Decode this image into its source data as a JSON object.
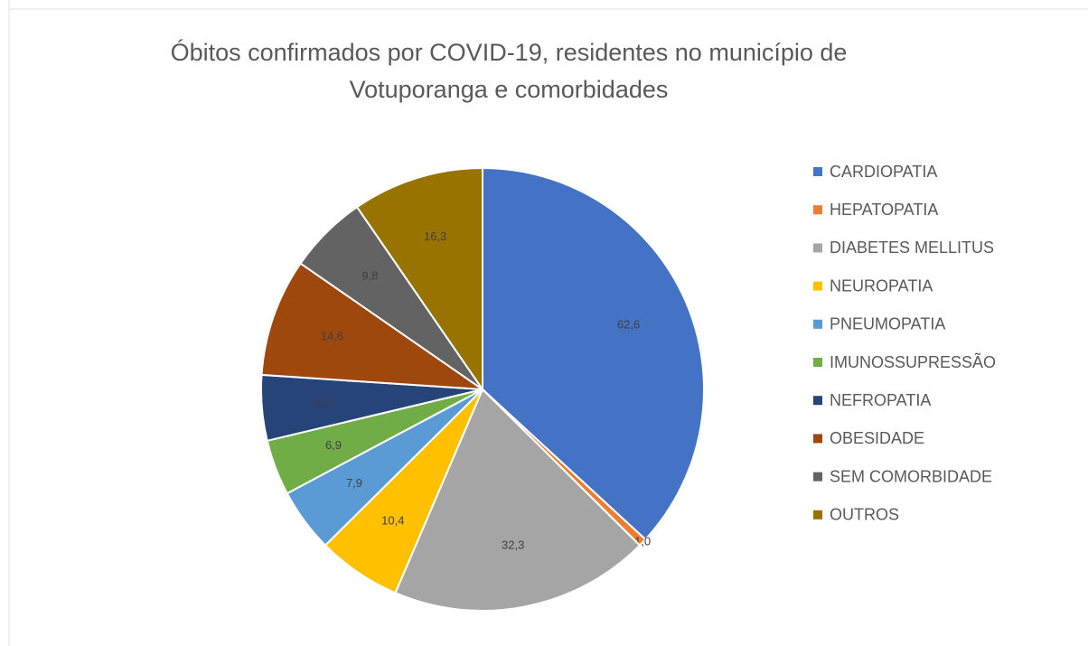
{
  "chart_data": {
    "type": "pie",
    "title": "Óbitos confirmados por COVID-19, residentes no município de Votuporanga e comorbidades",
    "categories": [
      "CARDIOPATIA",
      "HEPATOPATIA",
      "DIABETES MELLITUS",
      "NEUROPATIA",
      "PNEUMOPATIA",
      "IMUNOSSUPRESSÃO",
      "NEFROPATIA",
      "OBESIDADE",
      "SEM COMORBIDADE",
      "OUTROS"
    ],
    "values": [
      62.6,
      1.0,
      32.3,
      10.4,
      7.9,
      6.9,
      8.1,
      14.6,
      9.8,
      16.3
    ],
    "value_labels": [
      "62,6",
      "1,0",
      "32,3",
      "10,4",
      "7,9",
      "6,9",
      "8,1",
      "14,6",
      "9,8",
      "16,3"
    ],
    "colors": [
      "#4472C4",
      "#ED7D31",
      "#A5A5A5",
      "#FFC000",
      "#5B9BD5",
      "#70AD47",
      "#264478",
      "#9E480E",
      "#636363",
      "#997300"
    ],
    "legend": "right"
  }
}
